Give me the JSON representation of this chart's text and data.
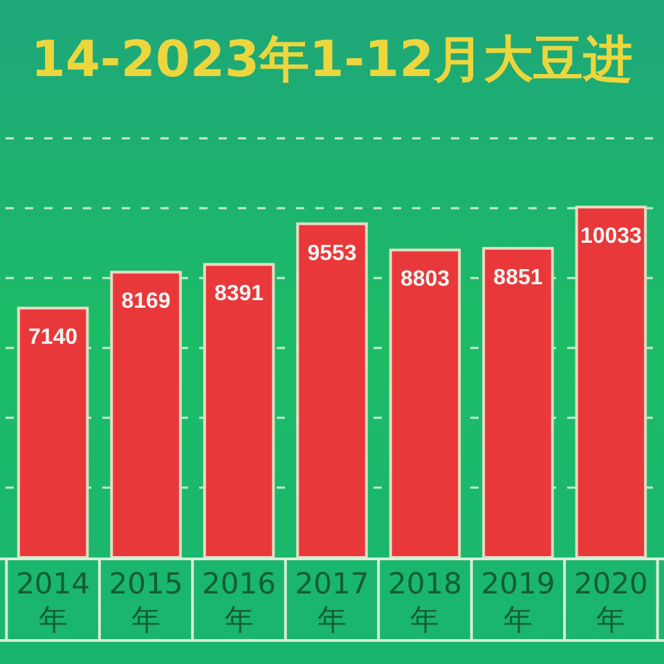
{
  "chart_data": {
    "type": "bar",
    "title": "14-2023年1-12月大豆进",
    "categories": [
      "2014年",
      "2015年",
      "2016年",
      "2017年",
      "2018年",
      "2019年",
      "2020年"
    ],
    "values": [
      7140,
      8169,
      8391,
      9553,
      8803,
      8851,
      10033
    ],
    "color": "#e8383a",
    "ylim": [
      0,
      12000
    ],
    "yticks": [
      {
        "value": 2000,
        "label": null
      },
      {
        "value": 4000,
        "label": null
      },
      {
        "value": 6000,
        "label": null
      },
      {
        "value": 8000,
        "label": null
      },
      {
        "value": 10000,
        "label": null
      },
      {
        "value": 12000,
        "label": null
      }
    ],
    "grid": "y",
    "tick_labels": "x",
    "data_labels": true
  }
}
